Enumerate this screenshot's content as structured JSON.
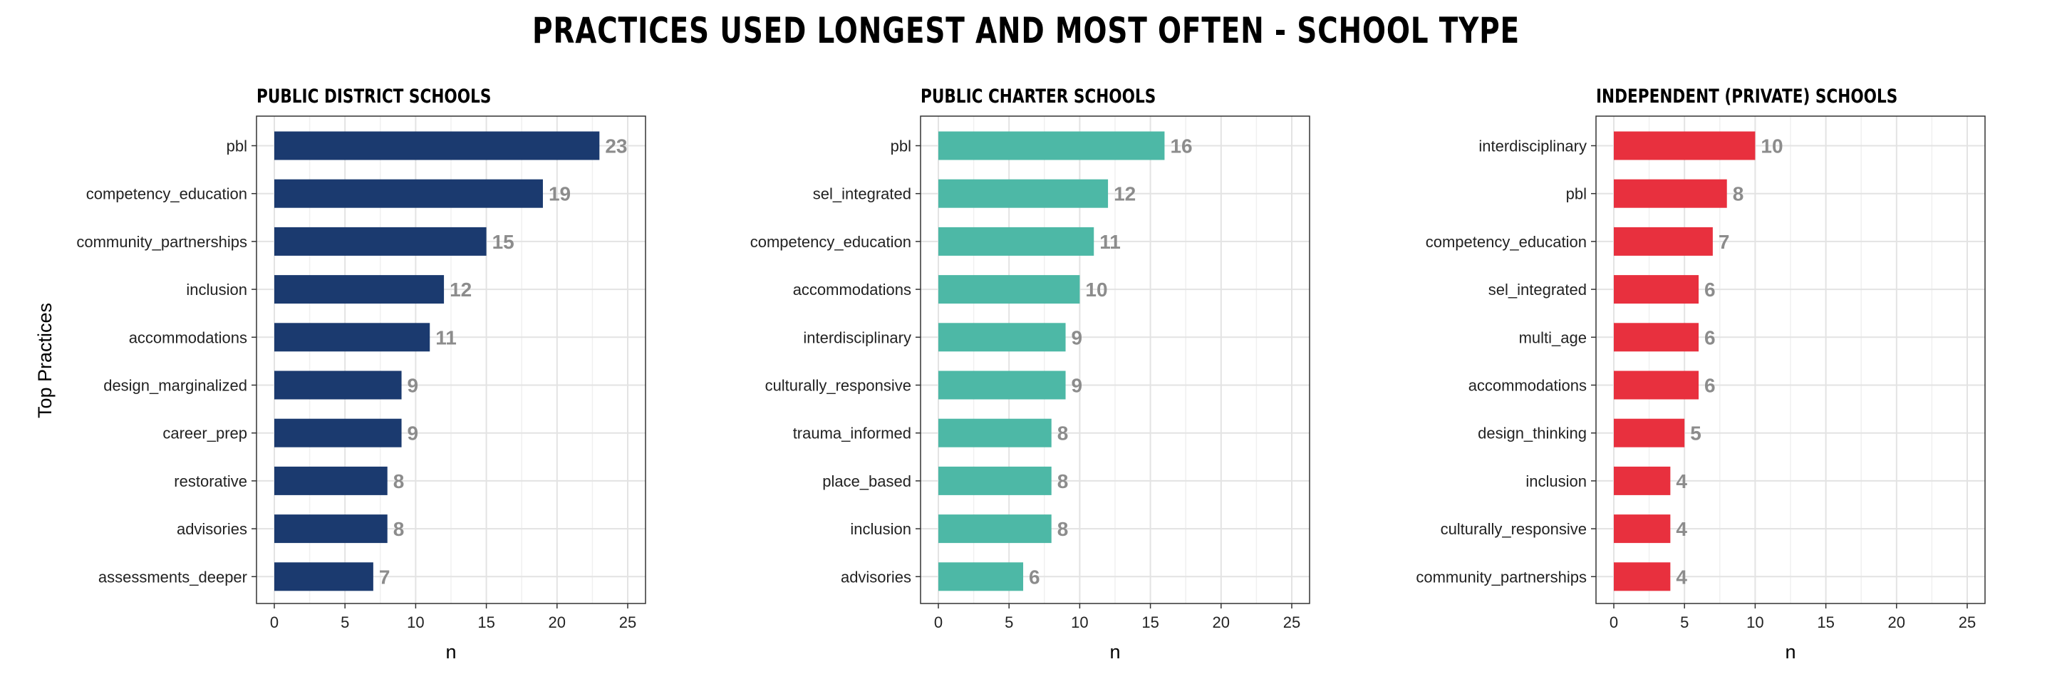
{
  "title": "PRACTICES USED LONGEST AND MOST OFTEN - SCHOOL TYPE",
  "ylabel_shared": "Top Practices",
  "chart_data": [
    {
      "type": "bar",
      "orientation": "horizontal",
      "title": "PUBLIC DISTRICT SCHOOLS",
      "xlabel": "n",
      "color": "#1b3a6f",
      "xlim": [
        0,
        25
      ],
      "ticks": [
        "0",
        "5",
        "10",
        "15",
        "20",
        "25"
      ],
      "grid": true,
      "categories": [
        "pbl",
        "competency_education",
        "community_partnerships",
        "inclusion",
        "accommodations",
        "design_marginalized",
        "career_prep",
        "restorative",
        "advisories",
        "assessments_deeper"
      ],
      "values": [
        23,
        19,
        15,
        12,
        11,
        9,
        9,
        8,
        8,
        7
      ]
    },
    {
      "type": "bar",
      "orientation": "horizontal",
      "title": "PUBLIC CHARTER SCHOOLS",
      "xlabel": "n",
      "color": "#4db8a6",
      "xlim": [
        0,
        25
      ],
      "ticks": [
        "0",
        "5",
        "10",
        "15",
        "20",
        "25"
      ],
      "grid": true,
      "categories": [
        "pbl",
        "sel_integrated",
        "competency_education",
        "accommodations",
        "interdisciplinary",
        "culturally_responsive",
        "trauma_informed",
        "place_based",
        "inclusion",
        "advisories"
      ],
      "values": [
        16,
        12,
        11,
        10,
        9,
        9,
        8,
        8,
        8,
        6
      ]
    },
    {
      "type": "bar",
      "orientation": "horizontal",
      "title": "INDEPENDENT (PRIVATE) SCHOOLS",
      "xlabel": "n",
      "color": "#e8303e",
      "xlim": [
        0,
        25
      ],
      "ticks": [
        "0",
        "5",
        "10",
        "15",
        "20",
        "25"
      ],
      "grid": true,
      "categories": [
        "interdisciplinary",
        "pbl",
        "competency_education",
        "sel_integrated",
        "multi_age",
        "accommodations",
        "design_thinking",
        "inclusion",
        "culturally_responsive",
        "community_partnerships"
      ],
      "values": [
        10,
        8,
        7,
        6,
        6,
        6,
        5,
        4,
        4,
        4
      ]
    }
  ]
}
